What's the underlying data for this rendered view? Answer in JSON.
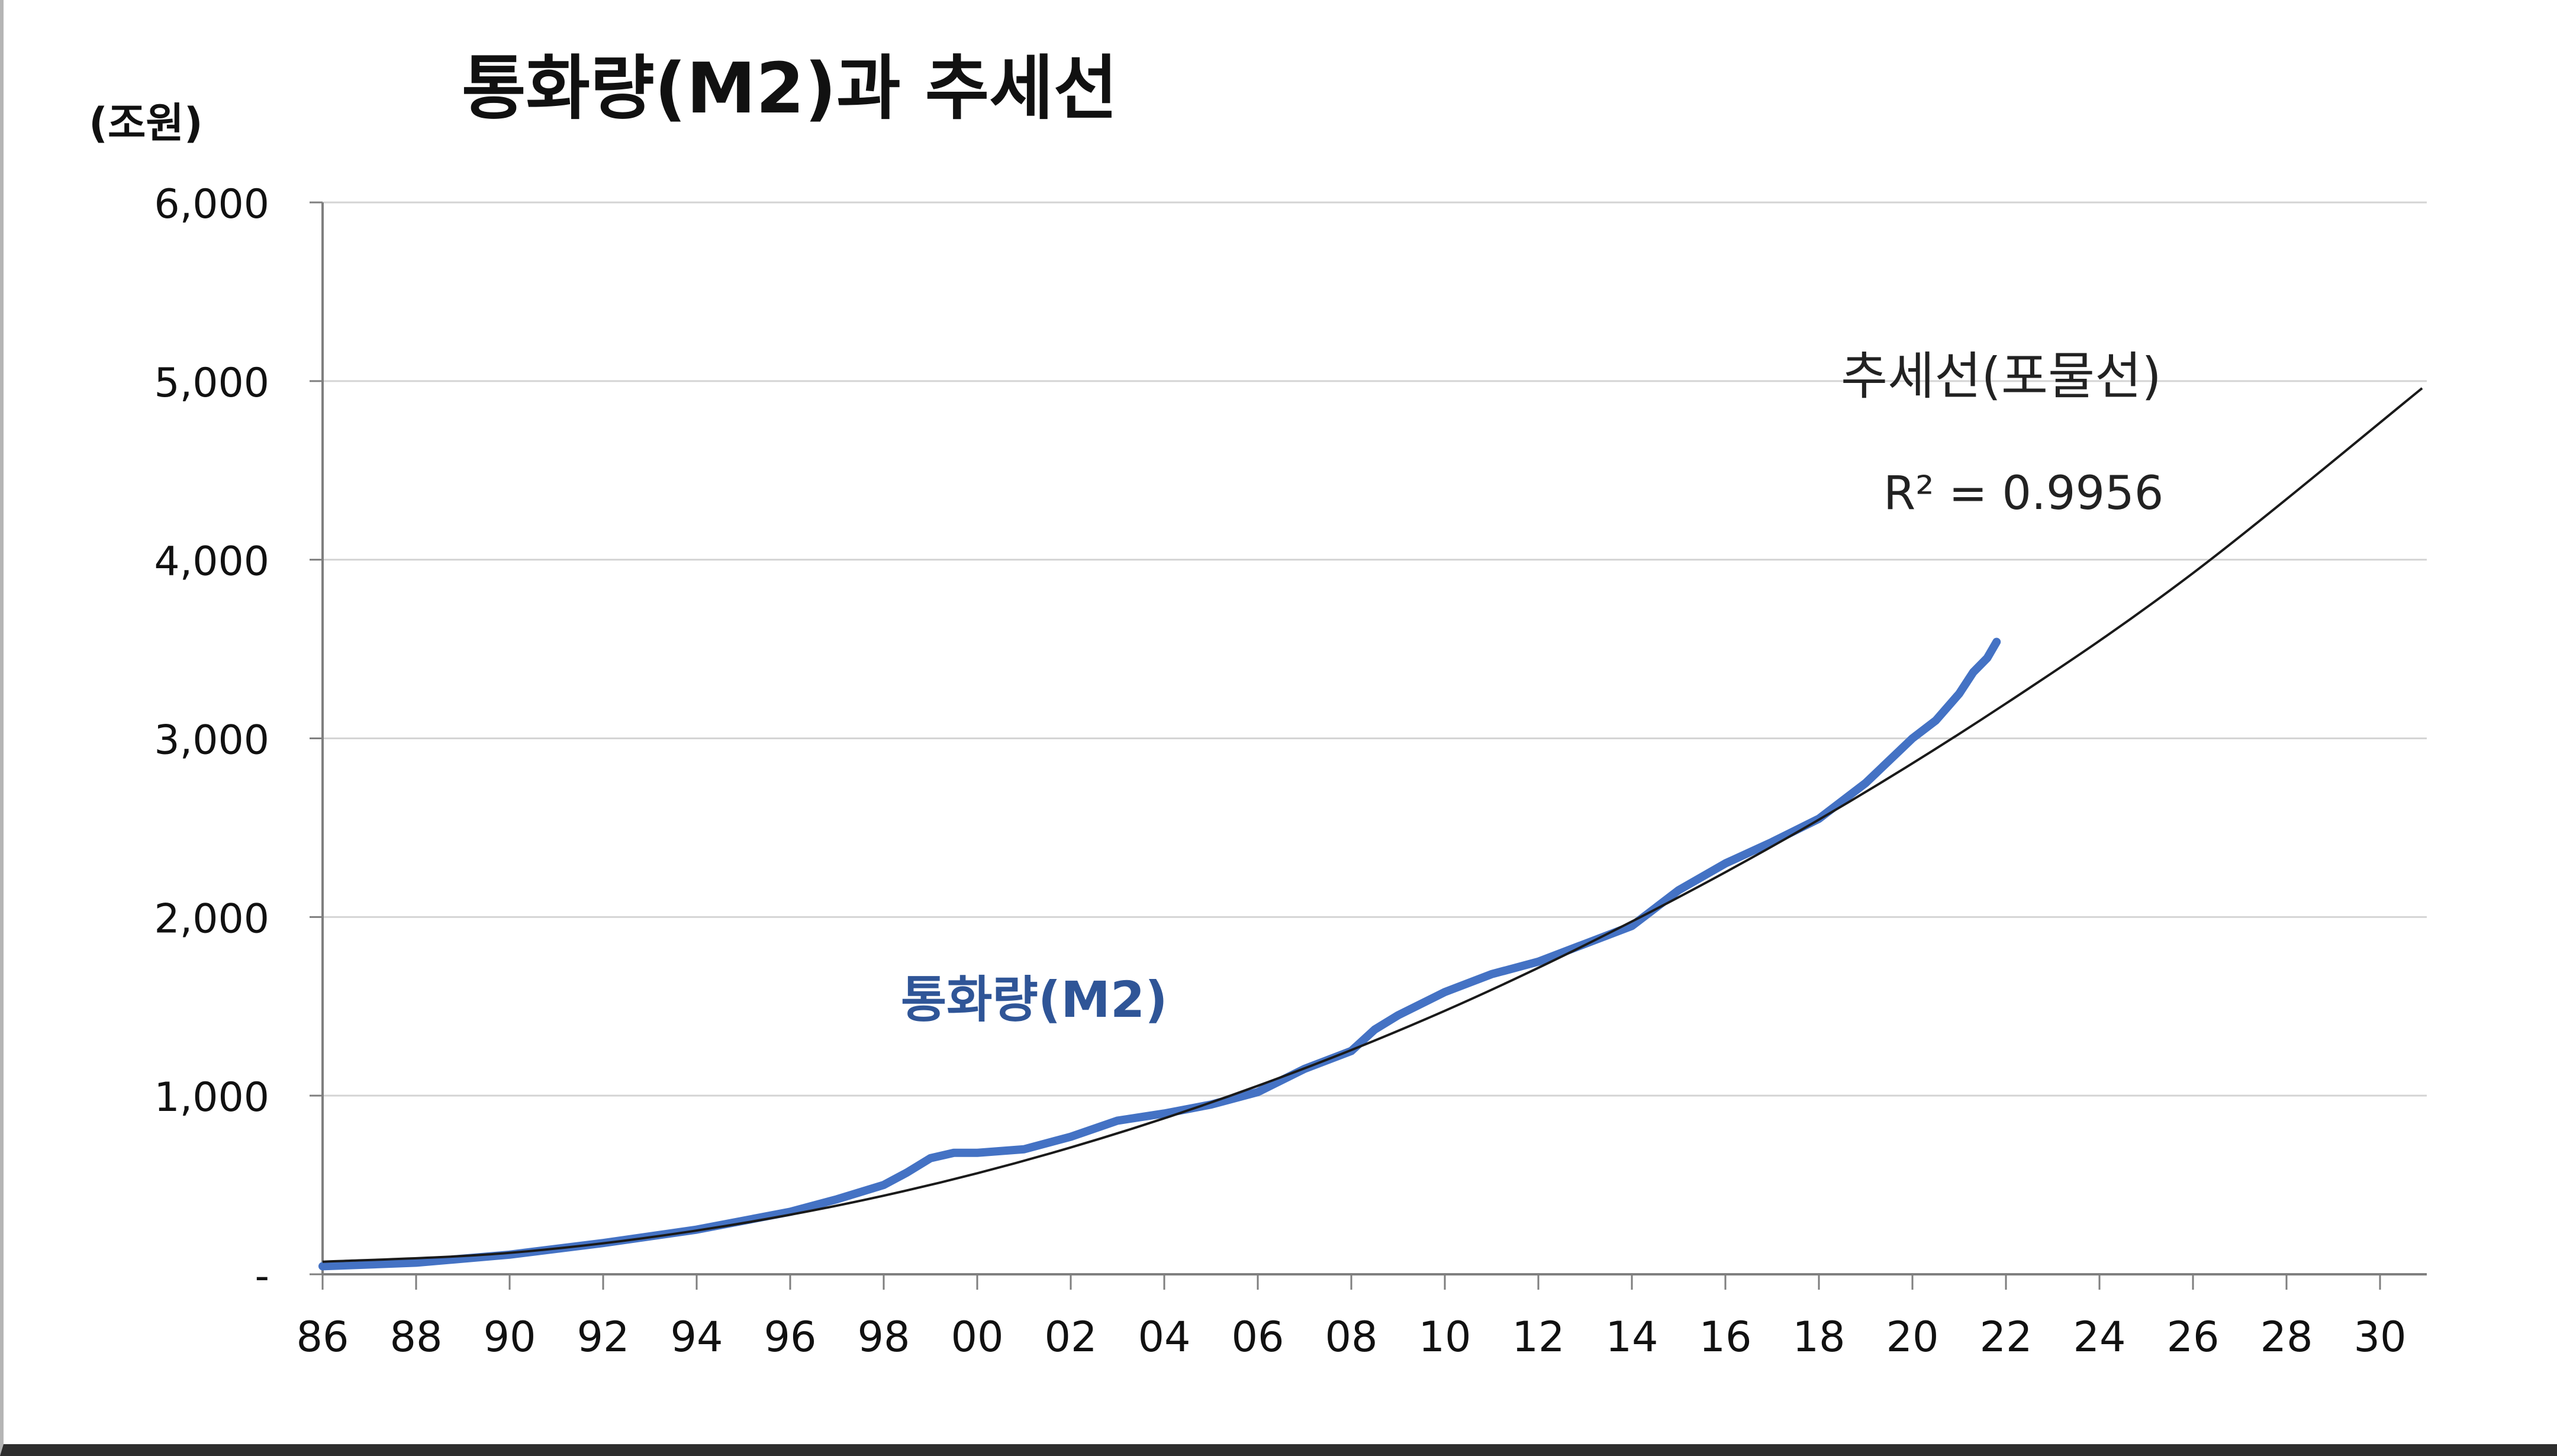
{
  "chart_data": {
    "type": "line",
    "title": "통화량(M2)과 추세선",
    "ylabel": "(조원)",
    "xlabel": "",
    "xlim": [
      1986,
      2031
    ],
    "ylim": [
      0,
      6000
    ],
    "y_ticks": [
      0,
      1000,
      2000,
      3000,
      4000,
      5000,
      6000
    ],
    "y_tick_labels": [
      "-",
      "1,000",
      "2,000",
      "3,000",
      "4,000",
      "5,000",
      "6,000"
    ],
    "x_ticks": [
      1986,
      1988,
      1990,
      1992,
      1994,
      1996,
      1998,
      2000,
      2002,
      2004,
      2006,
      2008,
      2010,
      2012,
      2014,
      2016,
      2018,
      2020,
      2022,
      2024,
      2026,
      2028,
      2030
    ],
    "x_tick_labels": [
      "86",
      "88",
      "90",
      "92",
      "94",
      "96",
      "98",
      "00",
      "02",
      "04",
      "06",
      "08",
      "10",
      "12",
      "14",
      "16",
      "18",
      "20",
      "22",
      "24",
      "26",
      "28",
      "30"
    ],
    "grid": true,
    "series": [
      {
        "name": "통화량(M2)",
        "color": "#4472c4",
        "label_color": "#2f5597",
        "x": [
          1986,
          1988,
          1990,
          1992,
          1994,
          1996,
          1997,
          1998,
          1998.5,
          1999,
          1999.5,
          2000,
          2001,
          2002,
          2003,
          2004,
          2005,
          2006,
          2007,
          2008,
          2008.5,
          2009,
          2010,
          2011,
          2012,
          2013,
          2014,
          2015,
          2016,
          2017,
          2018,
          2019,
          2020,
          2020.5,
          2021,
          2021.3,
          2021.6,
          2021.8
        ],
        "y": [
          45,
          65,
          110,
          175,
          250,
          350,
          420,
          500,
          570,
          650,
          680,
          680,
          700,
          770,
          860,
          900,
          950,
          1020,
          1150,
          1250,
          1370,
          1450,
          1580,
          1680,
          1750,
          1850,
          1950,
          2150,
          2300,
          2420,
          2550,
          2750,
          3000,
          3100,
          3250,
          3370,
          3450,
          3540
        ]
      },
      {
        "name": "추세선(포물선)",
        "color": "#1a1a1a",
        "trend": {
          "kind": "polynomial-2",
          "x": [
            1986,
            1990,
            1994,
            1998,
            2002,
            2006,
            2010,
            2014,
            2018,
            2022,
            2026,
            2030.9
          ],
          "y": [
            70,
            120,
            245,
            440,
            710,
            1055,
            1475,
            1975,
            2545,
            3195,
            3925,
            4960
          ]
        }
      }
    ],
    "annotations": {
      "trend_label": "추세선(포물선)",
      "r_squared": "R² = 0.9956",
      "series_label": "통화량(M2)"
    }
  }
}
